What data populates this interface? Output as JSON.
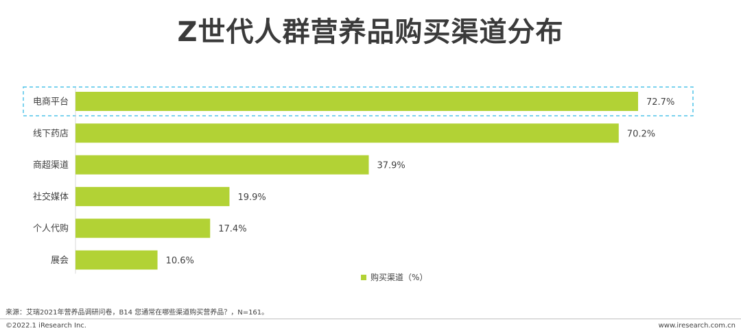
{
  "title": "Z世代人群营养品购买渠道分布",
  "chart_data": {
    "type": "bar",
    "orientation": "horizontal",
    "categories": [
      "电商平台",
      "线下药店",
      "商超渠道",
      "社交媒体",
      "个人代购",
      "展会"
    ],
    "series": [
      {
        "name": "购买渠道（%）",
        "values": [
          72.7,
          70.2,
          37.9,
          19.9,
          17.4,
          10.6
        ]
      }
    ],
    "value_suffix": "%",
    "xlim": [
      0,
      75
    ],
    "highlighted_category": "电商平台",
    "legend_position": "bottom",
    "grid": false,
    "bar_color": "#b2d235",
    "highlight_border_color": "#4fc3e8"
  },
  "footer": {
    "source": "来源：艾瑞2021年营养品调研问卷，B14 您通常在哪些渠道购买营养品？，N=161。",
    "copyright": "©2022.1 iResearch Inc.",
    "url": "www.iresearch.com.cn"
  }
}
